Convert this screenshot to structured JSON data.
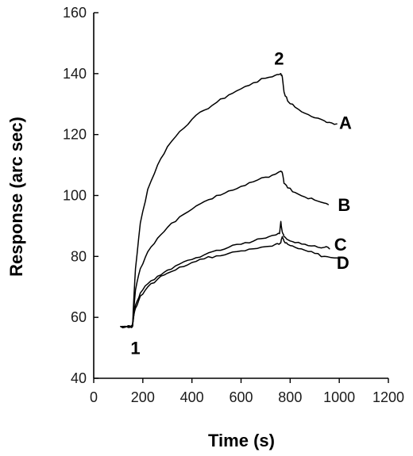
{
  "chart_data": {
    "type": "line",
    "xlabel": "Time (s)",
    "ylabel": "Response (arc sec)",
    "xlim": [
      0,
      1200
    ],
    "ylim": [
      40,
      160
    ],
    "xticks": [
      0,
      200,
      400,
      600,
      800,
      1000,
      1200
    ],
    "yticks": [
      40,
      60,
      80,
      100,
      120,
      140,
      160
    ],
    "grid": false,
    "series": [
      {
        "name": "A",
        "x": [
          110,
          135,
          150,
          158,
          162,
          170,
          190,
          220,
          260,
          300,
          350,
          400,
          450,
          500,
          550,
          600,
          650,
          700,
          740,
          762,
          768,
          775,
          790,
          820,
          860,
          900,
          940,
          960,
          990
        ],
        "y": [
          57,
          57,
          57,
          57,
          64,
          76,
          91,
          102,
          110,
          116,
          121,
          125,
          128,
          130.5,
          133,
          135,
          137,
          138.5,
          139.5,
          140,
          139,
          134,
          131,
          129,
          127,
          125.5,
          124.5,
          124,
          123.5
        ]
      },
      {
        "name": "B",
        "x": [
          110,
          135,
          150,
          158,
          162,
          170,
          190,
          220,
          260,
          300,
          350,
          400,
          450,
          500,
          550,
          600,
          650,
          700,
          740,
          762,
          768,
          775,
          790,
          820,
          860,
          900,
          940,
          955
        ],
        "y": [
          57,
          57,
          57,
          57,
          62,
          69,
          76,
          81.5,
          86,
          89.5,
          93,
          95.5,
          98,
          100,
          101.5,
          103,
          104.5,
          106,
          107,
          108,
          107.5,
          104,
          102.5,
          101,
          99.5,
          98.5,
          97.5,
          97
        ]
      },
      {
        "name": "C",
        "x": [
          110,
          135,
          150,
          158,
          162,
          170,
          190,
          220,
          260,
          300,
          350,
          400,
          450,
          500,
          550,
          600,
          650,
          700,
          740,
          757,
          762,
          768,
          775,
          790,
          820,
          860,
          900,
          940,
          960
        ],
        "y": [
          57,
          57,
          57,
          57,
          60,
          64,
          68,
          71,
          73.5,
          75.5,
          77.5,
          79,
          80.5,
          82,
          83,
          84,
          85,
          86,
          87,
          87.5,
          91.5,
          88,
          86.5,
          85.5,
          84.5,
          84,
          83.5,
          83,
          82.5
        ]
      },
      {
        "name": "D",
        "x": [
          110,
          135,
          150,
          158,
          162,
          170,
          190,
          220,
          260,
          300,
          350,
          400,
          450,
          500,
          550,
          600,
          650,
          700,
          740,
          762,
          768,
          775,
          790,
          820,
          860,
          900,
          940,
          980,
          1000
        ],
        "y": [
          57,
          57,
          57,
          57,
          60,
          63,
          67,
          70,
          72.5,
          74.5,
          76.5,
          78,
          79.2,
          80.2,
          81,
          81.8,
          82.5,
          83.2,
          84,
          84.5,
          86.5,
          85,
          84,
          83,
          82,
          81,
          80,
          79.5,
          79
        ]
      }
    ],
    "annotations": [
      {
        "text": "1",
        "x": 170,
        "y": 50
      },
      {
        "text": "2",
        "x": 755,
        "y": 145
      },
      {
        "text": "A",
        "x": 1025,
        "y": 124
      },
      {
        "text": "B",
        "x": 1020,
        "y": 97
      },
      {
        "text": "C",
        "x": 1005,
        "y": 84
      },
      {
        "text": "D",
        "x": 1015,
        "y": 78
      }
    ]
  }
}
